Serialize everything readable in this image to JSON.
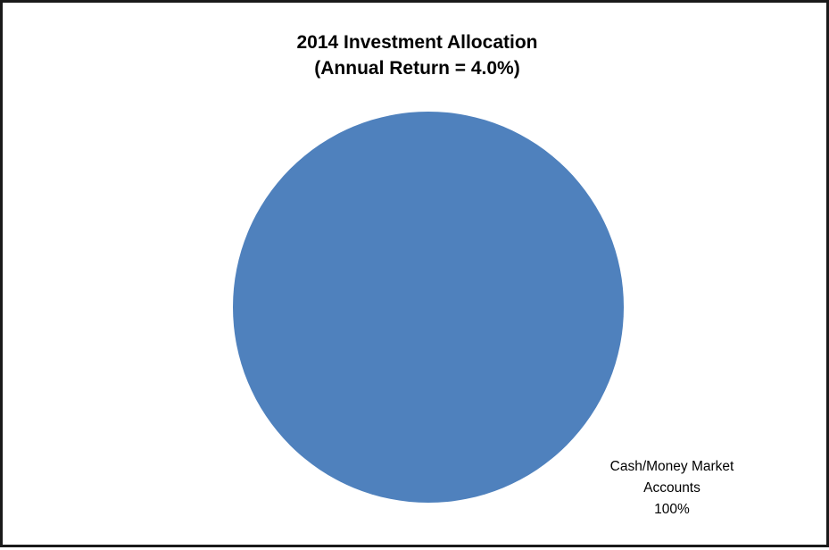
{
  "chart_data": {
    "type": "pie",
    "title": "2014 Investment Allocation",
    "subtitle": "(Annual Return = 4.0%)",
    "slices": [
      {
        "label_line1": "Cash/Money Market",
        "label_line2": "Accounts",
        "value": 100,
        "value_label": "100%",
        "color": "#4F81BD"
      }
    ],
    "legend": "none"
  }
}
